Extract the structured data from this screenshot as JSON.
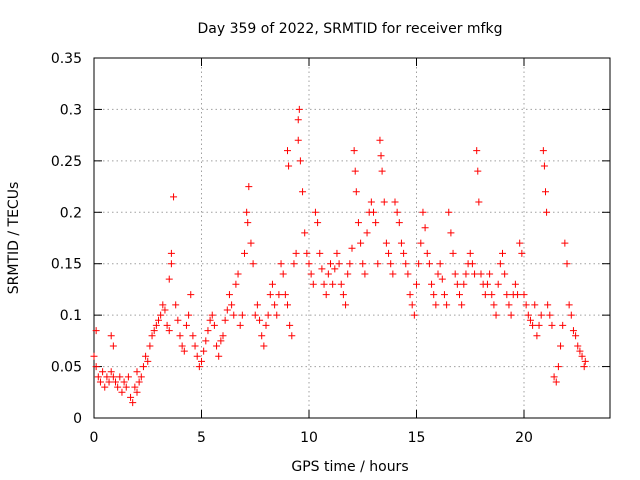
{
  "chart_data": {
    "type": "scatter",
    "title": "Day 359 of 2022, SRMTID for receiver mfkg",
    "xlabel": "GPS time / hours",
    "ylabel": "SRMTID / TECUs",
    "xlim": [
      0,
      24
    ],
    "ylim": [
      0,
      0.35
    ],
    "x_ticks": [
      0,
      5,
      10,
      15,
      20
    ],
    "x_tick_labels": [
      "0",
      "5",
      "10",
      "15",
      "20"
    ],
    "y_ticks": [
      0,
      0.05,
      0.1,
      0.15,
      0.2,
      0.25,
      0.3,
      0.35
    ],
    "y_tick_labels": [
      "0",
      "0.05",
      "0.1",
      "0.15",
      "0.2",
      "0.25",
      "0.3",
      "0.35"
    ],
    "grid": true,
    "marker": "+",
    "color": "#ff0000",
    "series": [
      {
        "name": "SRMTID",
        "points": [
          [
            0.0,
            0.06
          ],
          [
            0.1,
            0.05
          ],
          [
            0.1,
            0.085
          ],
          [
            0.2,
            0.04
          ],
          [
            0.3,
            0.035
          ],
          [
            0.4,
            0.045
          ],
          [
            0.5,
            0.03
          ],
          [
            0.6,
            0.04
          ],
          [
            0.7,
            0.035
          ],
          [
            0.8,
            0.045
          ],
          [
            0.9,
            0.04
          ],
          [
            0.8,
            0.08
          ],
          [
            0.9,
            0.07
          ],
          [
            1.0,
            0.035
          ],
          [
            1.1,
            0.03
          ],
          [
            1.2,
            0.04
          ],
          [
            1.3,
            0.025
          ],
          [
            1.4,
            0.035
          ],
          [
            1.5,
            0.03
          ],
          [
            1.6,
            0.04
          ],
          [
            1.7,
            0.02
          ],
          [
            1.8,
            0.015
          ],
          [
            1.9,
            0.03
          ],
          [
            2.0,
            0.025
          ],
          [
            2.1,
            0.035
          ],
          [
            2.2,
            0.04
          ],
          [
            2.0,
            0.045
          ],
          [
            2.3,
            0.05
          ],
          [
            2.4,
            0.06
          ],
          [
            2.5,
            0.055
          ],
          [
            2.6,
            0.07
          ],
          [
            2.7,
            0.08
          ],
          [
            2.8,
            0.085
          ],
          [
            2.9,
            0.09
          ],
          [
            3.0,
            0.095
          ],
          [
            3.1,
            0.1
          ],
          [
            3.2,
            0.11
          ],
          [
            3.3,
            0.105
          ],
          [
            3.4,
            0.09
          ],
          [
            3.5,
            0.085
          ],
          [
            3.5,
            0.135
          ],
          [
            3.6,
            0.15
          ],
          [
            3.7,
            0.215
          ],
          [
            3.6,
            0.16
          ],
          [
            3.8,
            0.11
          ],
          [
            3.9,
            0.095
          ],
          [
            4.0,
            0.08
          ],
          [
            4.1,
            0.07
          ],
          [
            4.2,
            0.065
          ],
          [
            4.3,
            0.09
          ],
          [
            4.4,
            0.1
          ],
          [
            4.5,
            0.12
          ],
          [
            4.6,
            0.08
          ],
          [
            4.7,
            0.07
          ],
          [
            4.8,
            0.06
          ],
          [
            4.9,
            0.05
          ],
          [
            5.0,
            0.055
          ],
          [
            5.1,
            0.065
          ],
          [
            5.2,
            0.075
          ],
          [
            5.3,
            0.085
          ],
          [
            5.4,
            0.095
          ],
          [
            5.5,
            0.1
          ],
          [
            5.6,
            0.09
          ],
          [
            5.7,
            0.07
          ],
          [
            5.8,
            0.06
          ],
          [
            5.9,
            0.075
          ],
          [
            6.0,
            0.08
          ],
          [
            6.1,
            0.095
          ],
          [
            6.2,
            0.105
          ],
          [
            6.3,
            0.12
          ],
          [
            6.4,
            0.11
          ],
          [
            6.5,
            0.1
          ],
          [
            6.6,
            0.13
          ],
          [
            6.7,
            0.14
          ],
          [
            6.8,
            0.09
          ],
          [
            6.9,
            0.1
          ],
          [
            7.0,
            0.16
          ],
          [
            7.1,
            0.2
          ],
          [
            7.2,
            0.225
          ],
          [
            7.15,
            0.19
          ],
          [
            7.3,
            0.17
          ],
          [
            7.4,
            0.15
          ],
          [
            7.5,
            0.1
          ],
          [
            7.6,
            0.11
          ],
          [
            7.7,
            0.095
          ],
          [
            7.8,
            0.08
          ],
          [
            7.9,
            0.07
          ],
          [
            8.0,
            0.09
          ],
          [
            8.1,
            0.1
          ],
          [
            8.2,
            0.12
          ],
          [
            8.3,
            0.13
          ],
          [
            8.4,
            0.11
          ],
          [
            8.5,
            0.1
          ],
          [
            8.6,
            0.12
          ],
          [
            8.7,
            0.15
          ],
          [
            8.8,
            0.14
          ],
          [
            8.9,
            0.12
          ],
          [
            9.0,
            0.11
          ],
          [
            9.1,
            0.09
          ],
          [
            9.2,
            0.08
          ],
          [
            9.0,
            0.26
          ],
          [
            9.05,
            0.245
          ],
          [
            9.3,
            0.15
          ],
          [
            9.4,
            0.16
          ],
          [
            9.5,
            0.29
          ],
          [
            9.55,
            0.3
          ],
          [
            9.5,
            0.27
          ],
          [
            9.6,
            0.25
          ],
          [
            9.7,
            0.22
          ],
          [
            9.8,
            0.18
          ],
          [
            9.9,
            0.16
          ],
          [
            10.0,
            0.15
          ],
          [
            10.1,
            0.14
          ],
          [
            10.2,
            0.13
          ],
          [
            10.3,
            0.2
          ],
          [
            10.4,
            0.19
          ],
          [
            10.5,
            0.16
          ],
          [
            10.6,
            0.145
          ],
          [
            10.7,
            0.13
          ],
          [
            10.8,
            0.12
          ],
          [
            10.9,
            0.14
          ],
          [
            11.0,
            0.15
          ],
          [
            11.1,
            0.13
          ],
          [
            11.2,
            0.145
          ],
          [
            11.3,
            0.16
          ],
          [
            11.4,
            0.15
          ],
          [
            11.5,
            0.13
          ],
          [
            11.6,
            0.12
          ],
          [
            11.7,
            0.11
          ],
          [
            11.8,
            0.14
          ],
          [
            11.9,
            0.15
          ],
          [
            12.0,
            0.165
          ],
          [
            12.1,
            0.26
          ],
          [
            12.15,
            0.24
          ],
          [
            12.2,
            0.22
          ],
          [
            12.3,
            0.19
          ],
          [
            12.4,
            0.17
          ],
          [
            12.5,
            0.15
          ],
          [
            12.6,
            0.14
          ],
          [
            12.7,
            0.18
          ],
          [
            12.8,
            0.2
          ],
          [
            12.9,
            0.21
          ],
          [
            13.0,
            0.2
          ],
          [
            13.1,
            0.19
          ],
          [
            13.2,
            0.15
          ],
          [
            13.3,
            0.27
          ],
          [
            13.35,
            0.255
          ],
          [
            13.4,
            0.24
          ],
          [
            13.5,
            0.21
          ],
          [
            13.6,
            0.17
          ],
          [
            13.7,
            0.16
          ],
          [
            13.8,
            0.15
          ],
          [
            13.9,
            0.14
          ],
          [
            14.0,
            0.21
          ],
          [
            14.1,
            0.2
          ],
          [
            14.2,
            0.19
          ],
          [
            14.3,
            0.17
          ],
          [
            14.4,
            0.16
          ],
          [
            14.5,
            0.15
          ],
          [
            14.6,
            0.14
          ],
          [
            14.7,
            0.12
          ],
          [
            14.8,
            0.11
          ],
          [
            14.9,
            0.1
          ],
          [
            15.0,
            0.13
          ],
          [
            15.1,
            0.15
          ],
          [
            15.2,
            0.17
          ],
          [
            15.3,
            0.2
          ],
          [
            15.4,
            0.185
          ],
          [
            15.5,
            0.16
          ],
          [
            15.6,
            0.15
          ],
          [
            15.7,
            0.13
          ],
          [
            15.8,
            0.12
          ],
          [
            15.9,
            0.11
          ],
          [
            16.0,
            0.14
          ],
          [
            16.1,
            0.15
          ],
          [
            16.2,
            0.135
          ],
          [
            16.3,
            0.12
          ],
          [
            16.4,
            0.11
          ],
          [
            16.5,
            0.2
          ],
          [
            16.6,
            0.18
          ],
          [
            16.7,
            0.16
          ],
          [
            16.8,
            0.14
          ],
          [
            16.9,
            0.13
          ],
          [
            17.0,
            0.12
          ],
          [
            17.1,
            0.11
          ],
          [
            17.2,
            0.13
          ],
          [
            17.3,
            0.14
          ],
          [
            17.4,
            0.15
          ],
          [
            17.5,
            0.16
          ],
          [
            17.6,
            0.15
          ],
          [
            17.7,
            0.14
          ],
          [
            17.8,
            0.26
          ],
          [
            17.85,
            0.24
          ],
          [
            17.9,
            0.21
          ],
          [
            18.0,
            0.14
          ],
          [
            18.1,
            0.13
          ],
          [
            18.2,
            0.12
          ],
          [
            18.3,
            0.13
          ],
          [
            18.4,
            0.14
          ],
          [
            18.5,
            0.12
          ],
          [
            18.6,
            0.11
          ],
          [
            18.7,
            0.1
          ],
          [
            18.8,
            0.13
          ],
          [
            18.9,
            0.15
          ],
          [
            19.0,
            0.16
          ],
          [
            19.1,
            0.14
          ],
          [
            19.2,
            0.12
          ],
          [
            19.3,
            0.11
          ],
          [
            19.4,
            0.1
          ],
          [
            19.5,
            0.12
          ],
          [
            19.6,
            0.13
          ],
          [
            19.7,
            0.12
          ],
          [
            19.8,
            0.17
          ],
          [
            19.9,
            0.16
          ],
          [
            20.0,
            0.12
          ],
          [
            20.1,
            0.11
          ],
          [
            20.2,
            0.1
          ],
          [
            20.3,
            0.095
          ],
          [
            20.4,
            0.09
          ],
          [
            20.5,
            0.11
          ],
          [
            20.6,
            0.08
          ],
          [
            20.7,
            0.09
          ],
          [
            20.8,
            0.1
          ],
          [
            20.9,
            0.26
          ],
          [
            20.95,
            0.245
          ],
          [
            21.0,
            0.22
          ],
          [
            21.05,
            0.2
          ],
          [
            21.1,
            0.11
          ],
          [
            21.2,
            0.1
          ],
          [
            21.3,
            0.09
          ],
          [
            21.4,
            0.04
          ],
          [
            21.5,
            0.035
          ],
          [
            21.6,
            0.05
          ],
          [
            21.7,
            0.07
          ],
          [
            21.8,
            0.09
          ],
          [
            21.9,
            0.17
          ],
          [
            22.0,
            0.15
          ],
          [
            22.1,
            0.11
          ],
          [
            22.2,
            0.1
          ],
          [
            22.3,
            0.085
          ],
          [
            22.4,
            0.08
          ],
          [
            22.5,
            0.07
          ],
          [
            22.6,
            0.065
          ],
          [
            22.7,
            0.06
          ],
          [
            22.8,
            0.05
          ],
          [
            22.85,
            0.055
          ]
        ]
      }
    ]
  }
}
